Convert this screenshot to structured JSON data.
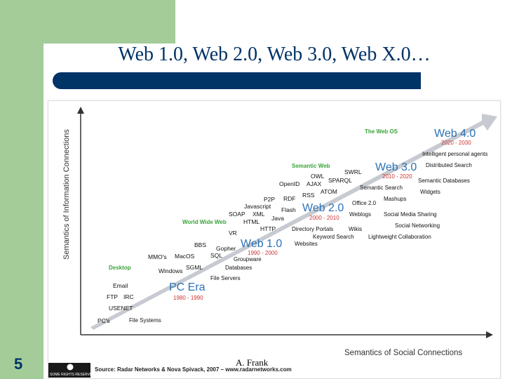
{
  "slide": {
    "title": "Web 1.0, Web 2.0, Web 3.0, Web X.0…",
    "number": "5",
    "footer": "A. Frank"
  },
  "diagram": {
    "y_axis_label": "Semantics of Information Connections",
    "x_axis_label": "Semantics of Social Connections",
    "source": "Source: Radar Networks & Nova Spivack, 2007 – www.radarnetworks.com",
    "license_badge": "SOME RIGHTS RESERVED",
    "colors": {
      "era": "#2c72b6",
      "years": "#cc3333",
      "category": "#3aa33a",
      "term": "#111111",
      "axis": "#333333",
      "arrow": "#b8bcc3"
    },
    "eras": [
      {
        "name": "PC Era",
        "years": "1980 - 1990"
      },
      {
        "name": "Web 1.0",
        "years": "1990 - 2000"
      },
      {
        "name": "Web 2.0",
        "years": "2000 - 2010"
      },
      {
        "name": "Web 3.0",
        "years": "2010 - 2020"
      },
      {
        "name": "Web 4.0",
        "years": "2020 - 2030"
      }
    ],
    "categories": [
      "Desktop",
      "World Wide Web",
      "Semantic Web",
      "The Web OS"
    ],
    "left_terms": [
      "PC's",
      "USENET",
      "FTP",
      "IRC",
      "Email",
      "Windows",
      "MMO's",
      "MacOS",
      "SGML",
      "SQL",
      "BBS",
      "Gopher",
      "VR",
      "HTTP",
      "HTML",
      "SOAP",
      "XML",
      "Java",
      "Javascript",
      "Flash",
      "P2P",
      "RDF",
      "RSS",
      "ATOM",
      "OpenID",
      "AJAX",
      "OWL",
      "SPARQL",
      "SWRL"
    ],
    "right_terms": [
      "File Systems",
      "File Servers",
      "Databases",
      "Groupware",
      "Websites",
      "Keyword Search",
      "Directory Portals",
      "Wikis",
      "Weblogs",
      "Office 2.0",
      "Mashups",
      "Social Media Sharing",
      "Lightweight Collaboration",
      "Social Networking",
      "Semantic Search",
      "Widgets",
      "Semantic Databases",
      "Distributed Search",
      "Intelligent personal agents"
    ]
  }
}
